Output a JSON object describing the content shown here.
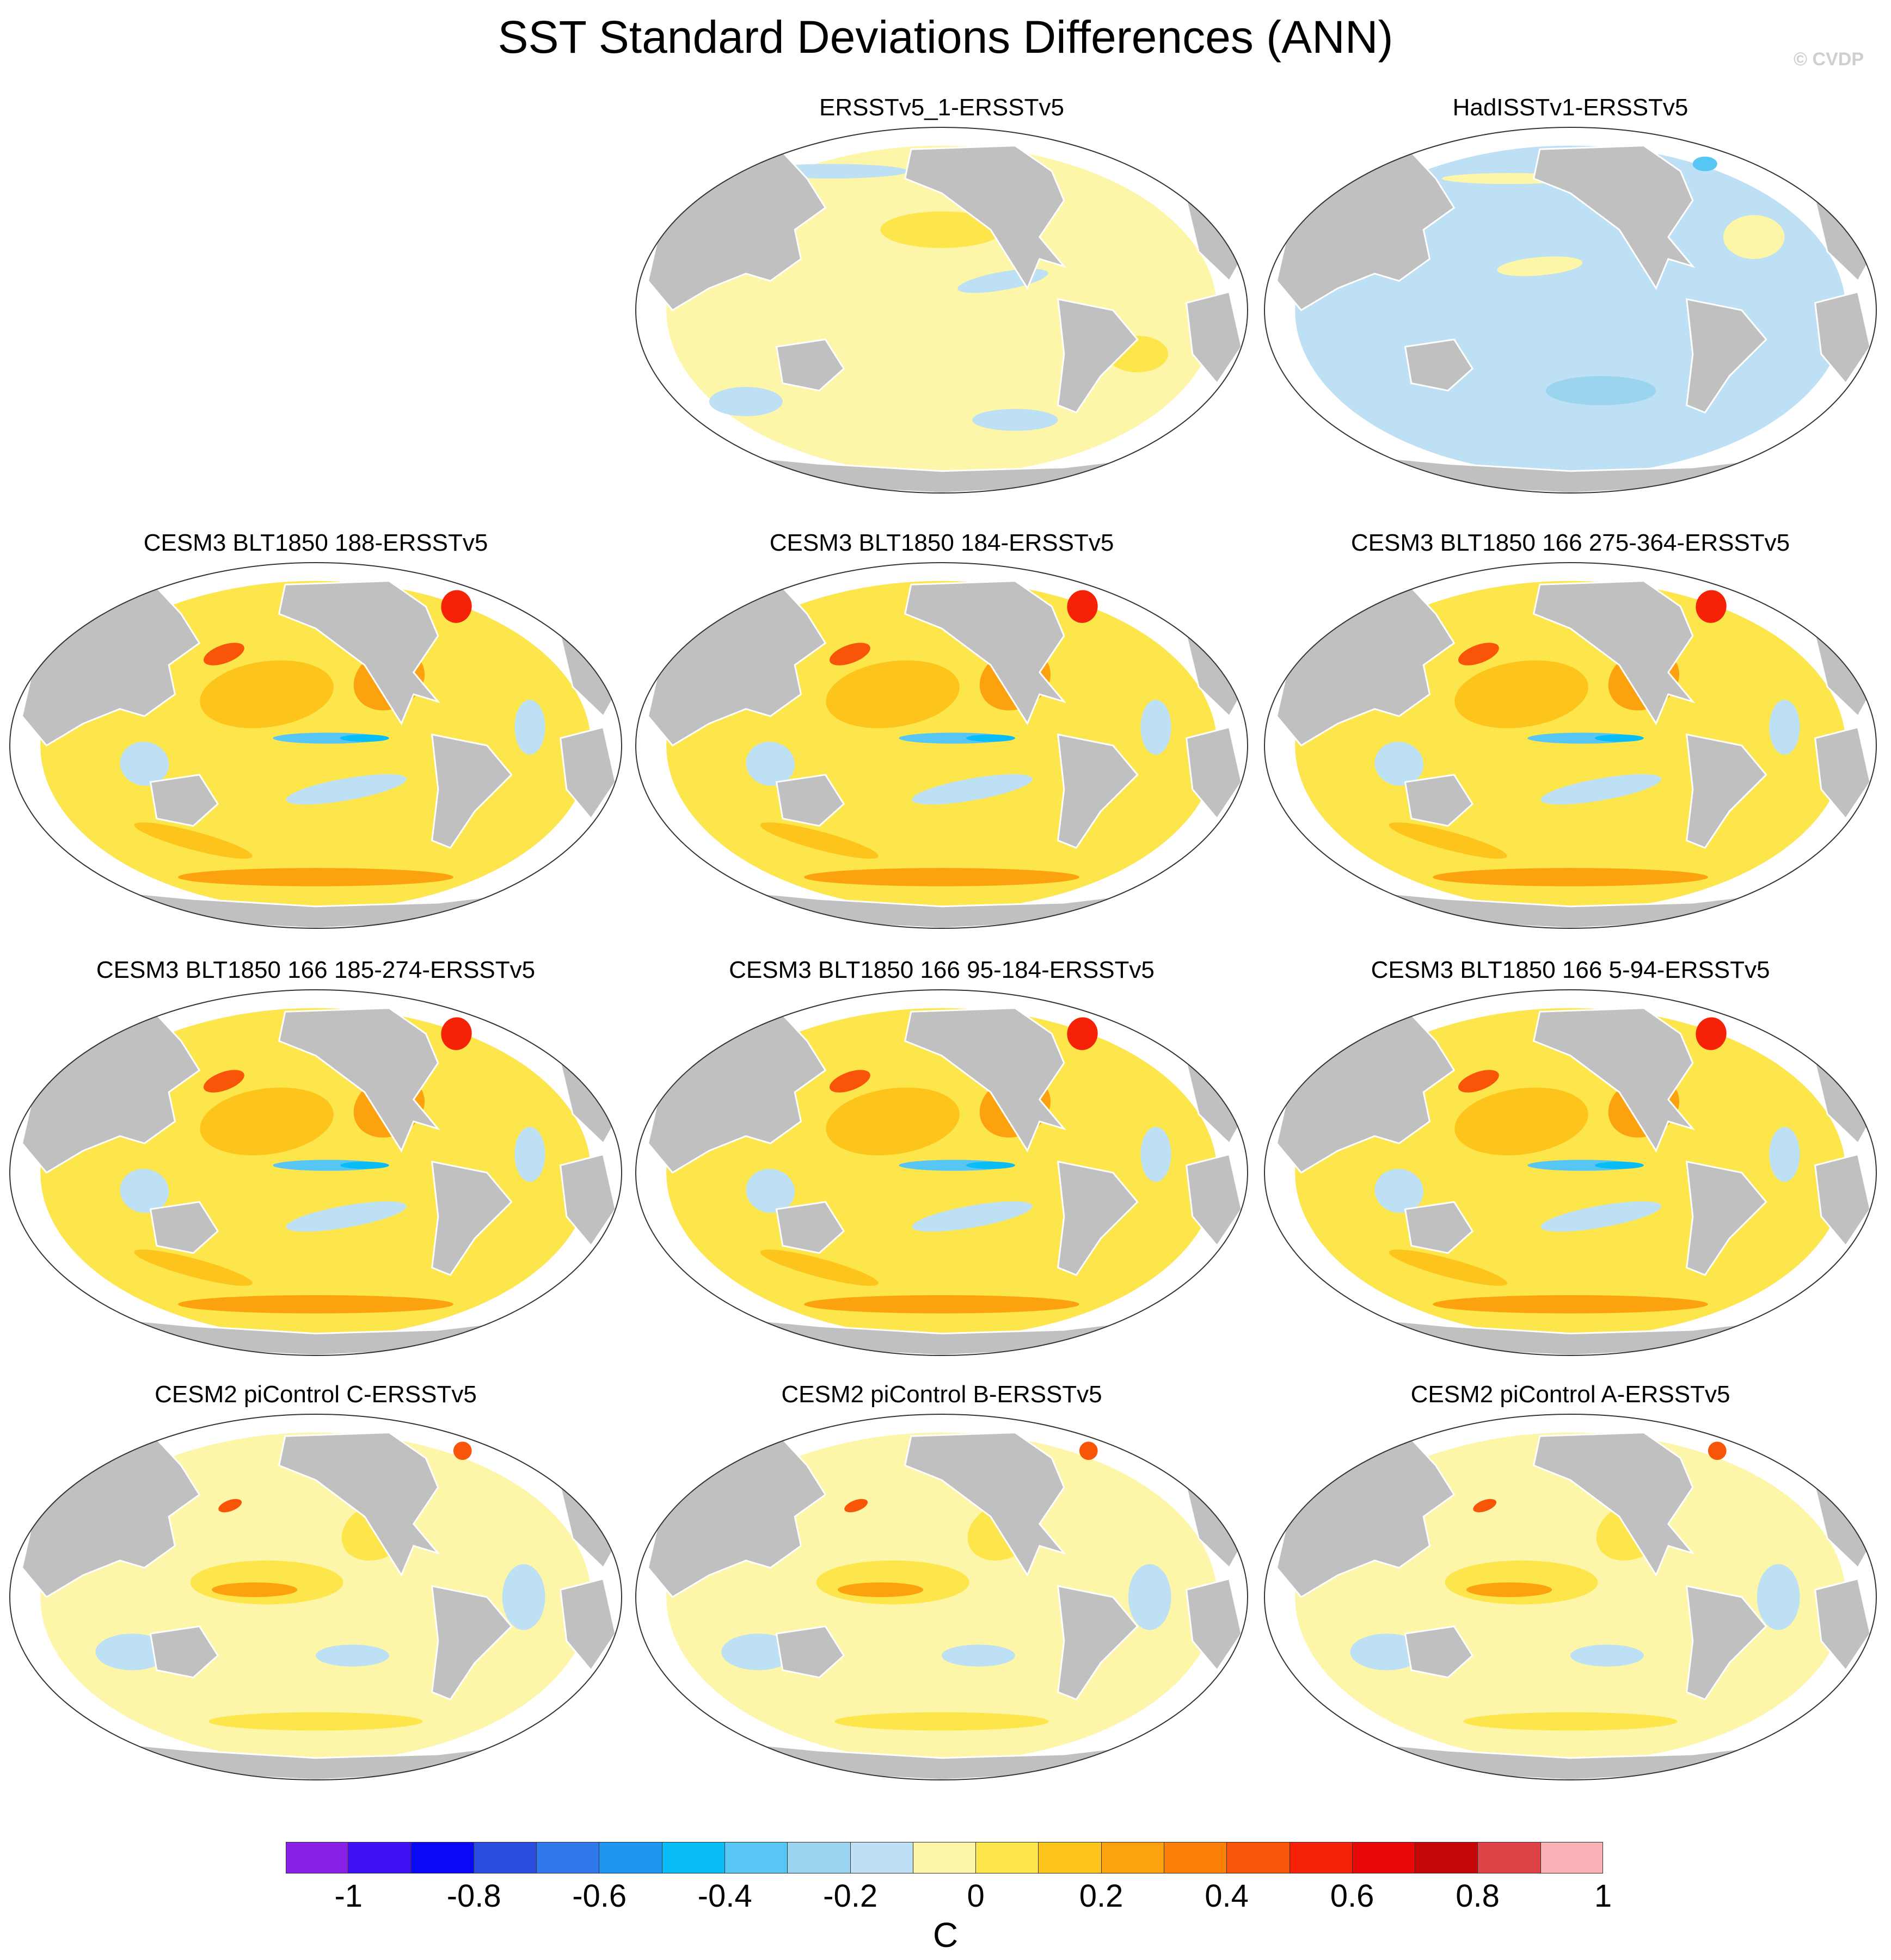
{
  "title": "SST Standard Deviations Differences (ANN)",
  "watermark": "© CVDP",
  "panels": [
    {
      "title": "ERSSTv5_1-ERSSTv5",
      "pattern": "obs_a"
    },
    {
      "title": "HadISSTv1-ERSSTv5",
      "pattern": "obs_b"
    },
    {
      "title": "CESM3 BLT1850 188-ERSSTv5",
      "pattern": "cesm3"
    },
    {
      "title": "CESM3 BLT1850 184-ERSSTv5",
      "pattern": "cesm3"
    },
    {
      "title": "CESM3 BLT1850 166 275-364-ERSSTv5",
      "pattern": "cesm3"
    },
    {
      "title": "CESM3 BLT1850 166 185-274-ERSSTv5",
      "pattern": "cesm3"
    },
    {
      "title": "CESM3 BLT1850 166 95-184-ERSSTv5",
      "pattern": "cesm3"
    },
    {
      "title": "CESM3 BLT1850 166 5-94-ERSSTv5",
      "pattern": "cesm3"
    },
    {
      "title": "CESM2 piControl C-ERSSTv5",
      "pattern": "cesm2"
    },
    {
      "title": "CESM2 piControl B-ERSSTv5",
      "pattern": "cesm2"
    },
    {
      "title": "CESM2 piControl A-ERSSTv5",
      "pattern": "cesm2"
    }
  ],
  "colorbar": {
    "unit": "C",
    "ticks": [
      "-1",
      "-0.8",
      "-0.6",
      "-0.4",
      "-0.2",
      "0",
      "0.2",
      "0.4",
      "0.6",
      "0.8",
      "1"
    ],
    "colors": [
      "#8a1fe6",
      "#4010f5",
      "#0b08f5",
      "#2a4fe0",
      "#2f78ea",
      "#1c96f0",
      "#08bcf5",
      "#58c6f4",
      "#9ad4ef",
      "#bde0f5",
      "#fdf6a8",
      "#fde54c",
      "#fdc41b",
      "#fda20f",
      "#fb7f08",
      "#f85508",
      "#f62208",
      "#e80808",
      "#c40707",
      "#dc4246",
      "#fab2b6"
    ]
  },
  "colors": {
    "land": "#c0c0c0",
    "ocean_neutral": "#fdf6a8"
  }
}
